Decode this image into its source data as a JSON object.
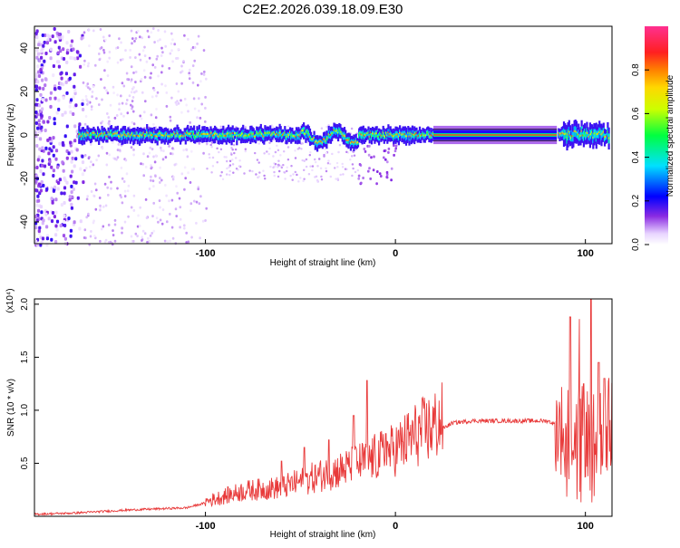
{
  "title": "C2E2.2026.039.18.09.E30",
  "chart_data": [
    {
      "type": "heatmap",
      "xlabel": "Height of straight line (km)",
      "ylabel": "Frequency (Hz)",
      "xlim": [
        -190,
        114
      ],
      "ylim": [
        -50,
        50
      ],
      "xticks": [
        -100,
        0,
        100
      ],
      "yticks": [
        -40,
        -20,
        0,
        20,
        40
      ],
      "colorbar": {
        "label": "Normalized spectral amplitude",
        "range": [
          0,
          1
        ],
        "ticks": [
          "0.0",
          "0.2",
          "0.4",
          "0.6",
          "0.8"
        ],
        "tick_values": [
          0.0,
          0.2,
          0.4,
          0.6,
          0.8
        ]
      },
      "ridge": {
        "description": "dominant frequency ridge near 0 Hz",
        "x_start": -167,
        "x_end": 112,
        "solid_band_start": 20,
        "solid_band_end": 85,
        "freq_center": 0
      },
      "scatter_region": {
        "x_start": -190,
        "x_end": -100,
        "freq_range": [
          -50,
          50
        ]
      }
    },
    {
      "type": "line",
      "xlabel": "Height of straight line (km)",
      "ylabel": "SNR (10 * v/v)",
      "multiplier": "(x10⁴)",
      "xlim": [
        -190,
        114
      ],
      "ylim": [
        0,
        2.05
      ],
      "xticks": [
        -100,
        0,
        100
      ],
      "yticks": [
        "0.5",
        "1.0",
        "1.5",
        "2.0"
      ],
      "ytick_values": [
        0.5,
        1.0,
        1.5,
        2.0
      ],
      "line_color": "#e83a3a",
      "envelope": [
        [
          -190,
          0.02
        ],
        [
          -170,
          0.03
        ],
        [
          -140,
          0.06
        ],
        [
          -110,
          0.08
        ],
        [
          -95,
          0.15
        ],
        [
          -80,
          0.22
        ],
        [
          -60,
          0.25
        ],
        [
          -40,
          0.35
        ],
        [
          -25,
          0.42
        ],
        [
          -15,
          0.48
        ],
        [
          0,
          0.58
        ],
        [
          10,
          0.7
        ],
        [
          20,
          0.78
        ],
        [
          30,
          0.88
        ],
        [
          40,
          0.9
        ],
        [
          60,
          0.9
        ],
        [
          80,
          0.9
        ],
        [
          85,
          0.86
        ],
        [
          90,
          0.8
        ],
        [
          95,
          0.75
        ],
        [
          100,
          0.8
        ],
        [
          105,
          0.7
        ],
        [
          110,
          0.86
        ],
        [
          114,
          0.87
        ]
      ],
      "spikes": [
        [
          -60,
          0.52
        ],
        [
          -48,
          0.65
        ],
        [
          -35,
          0.72
        ],
        [
          -22,
          0.95
        ],
        [
          -15,
          1.28
        ],
        [
          -5,
          0.78
        ],
        [
          92,
          1.88
        ],
        [
          97,
          1.86
        ],
        [
          99,
          1.25
        ],
        [
          103,
          2.05
        ],
        [
          107,
          1.45
        ],
        [
          110,
          1.3
        ]
      ]
    }
  ]
}
